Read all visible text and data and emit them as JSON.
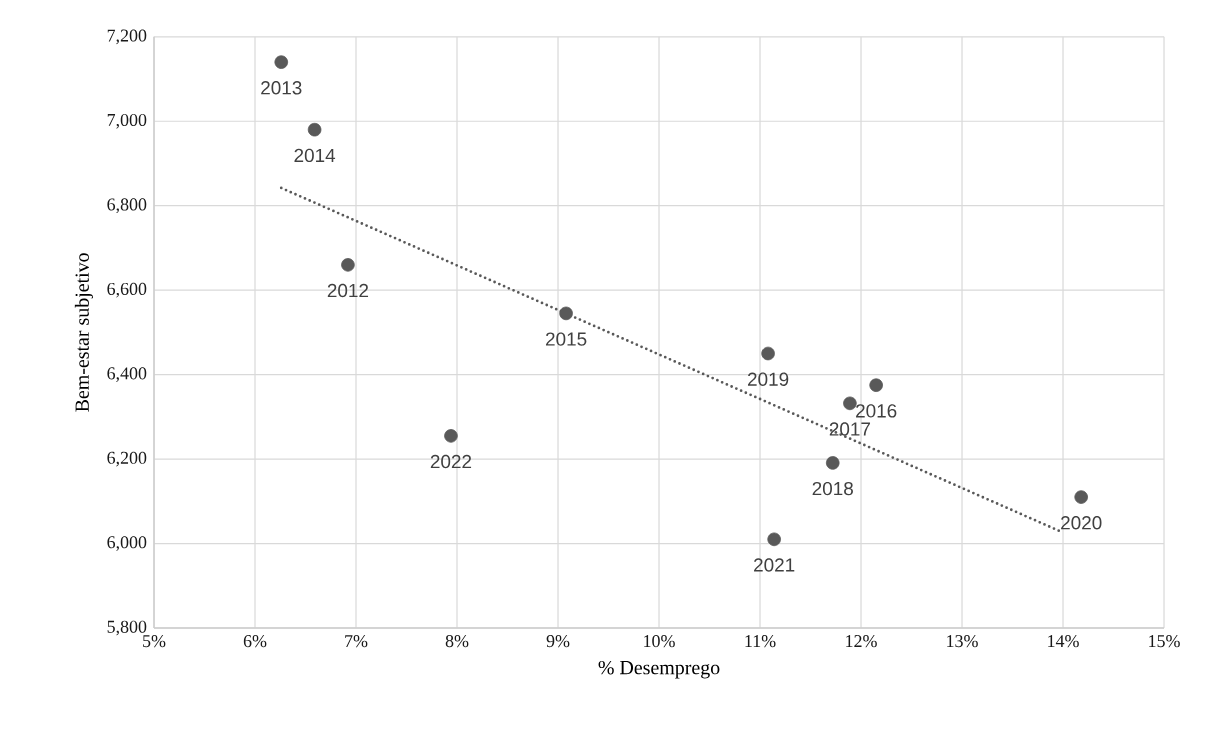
{
  "chart_data": {
    "type": "scatter",
    "xlabel": "% Desemprego",
    "ylabel": "Bem-estar subjetivo",
    "xlim": [
      5,
      15
    ],
    "ylim": [
      5800,
      7200
    ],
    "xticks": [
      {
        "value": 5,
        "label": "5%"
      },
      {
        "value": 6,
        "label": "6%"
      },
      {
        "value": 7,
        "label": "7%"
      },
      {
        "value": 8,
        "label": "8%"
      },
      {
        "value": 9,
        "label": "9%"
      },
      {
        "value": 10,
        "label": "10%"
      },
      {
        "value": 11,
        "label": "11%"
      },
      {
        "value": 12,
        "label": "12%"
      },
      {
        "value": 13,
        "label": "13%"
      },
      {
        "value": 14,
        "label": "14%"
      },
      {
        "value": 15,
        "label": "15%"
      }
    ],
    "yticks": [
      {
        "value": 5800,
        "label": "5,800"
      },
      {
        "value": 6000,
        "label": "6,000"
      },
      {
        "value": 6200,
        "label": "6,200"
      },
      {
        "value": 6400,
        "label": "6,400"
      },
      {
        "value": 6600,
        "label": "6,600"
      },
      {
        "value": 6800,
        "label": "6,800"
      },
      {
        "value": 7000,
        "label": "7,000"
      },
      {
        "value": 7200,
        "label": "7,200"
      }
    ],
    "grid": true,
    "series": [
      {
        "color": "#595959",
        "marker": "circle",
        "x": [
          6.92,
          6.26,
          6.59,
          9.08,
          12.15,
          11.89,
          11.72,
          11.08,
          14.18,
          11.14,
          7.94
        ],
        "values": [
          6660,
          7140,
          6980,
          6545,
          6375,
          6332,
          6191,
          6450,
          6110,
          6010,
          6255
        ]
      },
      {
        "type": "line",
        "color": "#595959",
        "marker": "none",
        "line_style": "dotted",
        "x": [
          6.26,
          14.0
        ],
        "values": [
          6842,
          6026
        ]
      }
    ],
    "annotations": [
      {
        "text": "2012",
        "x": 6.92,
        "y": 6660
      },
      {
        "text": "2013",
        "x": 6.26,
        "y": 7140
      },
      {
        "text": "2014",
        "x": 6.59,
        "y": 6980
      },
      {
        "text": "2015",
        "x": 9.08,
        "y": 6545
      },
      {
        "text": "2016",
        "x": 12.15,
        "y": 6375
      },
      {
        "text": "2017",
        "x": 11.89,
        "y": 6332
      },
      {
        "text": "2018",
        "x": 11.72,
        "y": 6191
      },
      {
        "text": "2019",
        "x": 11.08,
        "y": 6450
      },
      {
        "text": "2020",
        "x": 14.18,
        "y": 6110
      },
      {
        "text": "2021",
        "x": 11.14,
        "y": 6010
      },
      {
        "text": "2022",
        "x": 7.94,
        "y": 6255
      }
    ]
  }
}
